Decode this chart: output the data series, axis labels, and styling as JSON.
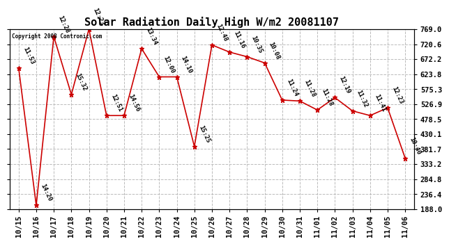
{
  "title": "Solar Radiation Daily High W/m2 20081107",
  "copyright": "Copyright 2008 Contronic.com",
  "x_labels": [
    "10/15",
    "10/16",
    "10/17",
    "10/18",
    "10/19",
    "10/20",
    "10/21",
    "10/22",
    "10/23",
    "10/24",
    "10/25",
    "10/26",
    "10/27",
    "10/28",
    "10/29",
    "10/30",
    "10/31",
    "11/01",
    "11/02",
    "11/03",
    "11/04",
    "11/05",
    "11/06"
  ],
  "y_vals": [
    643,
    200,
    745,
    558,
    769,
    490,
    490,
    706,
    615,
    615,
    390,
    718,
    695,
    680,
    660,
    540,
    537,
    508,
    548,
    505,
    490,
    515,
    352
  ],
  "time_labels": [
    "11:53",
    "14:20",
    "12:28",
    "15:32",
    "12:23",
    "12:51",
    "14:56",
    "13:34",
    "12:00",
    "14:10",
    "15:25",
    "12:48",
    "11:16",
    "10:35",
    "10:08",
    "11:24",
    "11:28",
    "11:28",
    "12:19",
    "11:32",
    "11:41",
    "12:23",
    "10:40"
  ],
  "yticks": [
    188.0,
    236.4,
    284.8,
    333.2,
    381.7,
    430.1,
    478.5,
    526.9,
    575.3,
    623.8,
    672.2,
    720.6,
    769.0
  ],
  "ymin": 188.0,
  "ymax": 769.0,
  "line_color": "#cc0000",
  "bg_color": "#ffffff",
  "grid_color": "#bbbbbb",
  "title_fontsize": 11,
  "annot_fontsize": 6.5,
  "tick_fontsize": 7.5
}
